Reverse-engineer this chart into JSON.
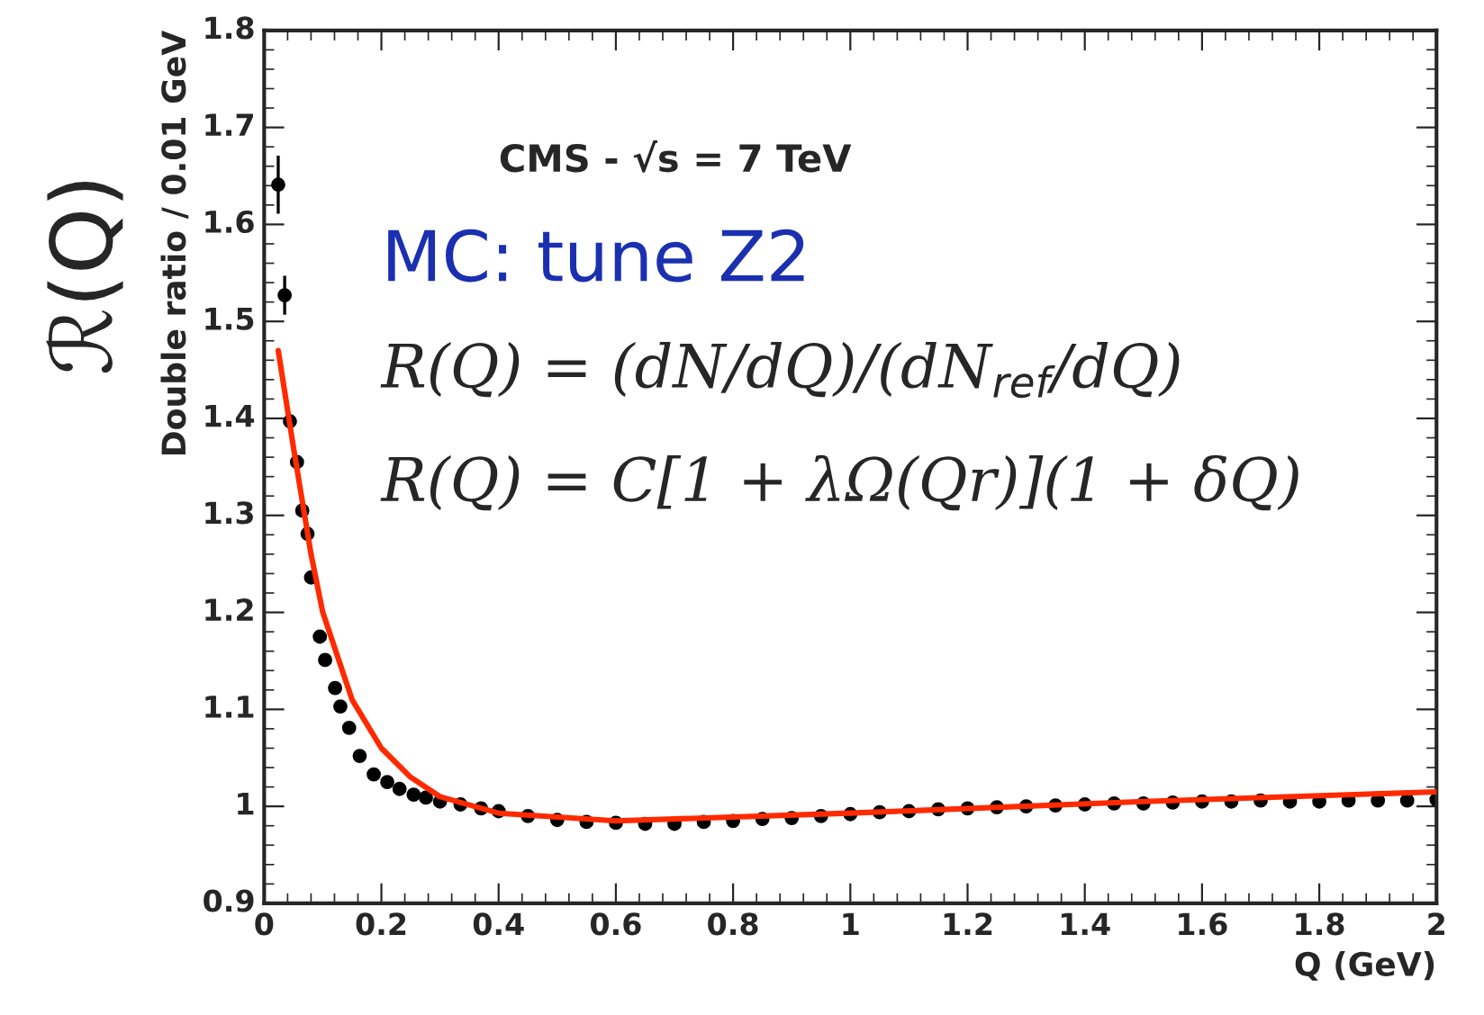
{
  "chart_data": {
    "type": "scatter",
    "xlabel": "Q (GeV)",
    "ylabel": "Double ratio / 0.01 GeV",
    "annotations": [
      "ℛ(Q)",
      "CMS - √s = 7 TeV",
      "MC: tune Z2",
      "R(Q) = (dN/dQ)/(dN$_{ref}$/dQ)",
      "R(Q) = C[1 + λΩ(Qr)](1 + δQ)"
    ],
    "xlim": [
      0,
      2
    ],
    "ylim": [
      0.9,
      1.8
    ],
    "xticks": [
      0,
      0.2,
      0.4,
      0.6,
      0.8,
      1,
      1.2,
      1.4,
      1.6,
      1.8,
      2
    ],
    "yticks": [
      0.9,
      1,
      1.1,
      1.2,
      1.3,
      1.4,
      1.5,
      1.6,
      1.7,
      1.8
    ],
    "grid": false,
    "legend": false,
    "marker": "circle",
    "series": [
      {
        "color": "#000000",
        "x": [
          0.024,
          0.035,
          0.044,
          0.056,
          0.065,
          0.074,
          0.08,
          0.095,
          0.104,
          0.121,
          0.13,
          0.145,
          0.163,
          0.187,
          0.21,
          0.231,
          0.255,
          0.276,
          0.3,
          0.335,
          0.37,
          0.4,
          0.45,
          0.5,
          0.55,
          0.6,
          0.65,
          0.7,
          0.75,
          0.8,
          0.85,
          0.9,
          0.95,
          1.0,
          1.05,
          1.1,
          1.15,
          1.2,
          1.25,
          1.3,
          1.35,
          1.4,
          1.45,
          1.5,
          1.55,
          1.6,
          1.65,
          1.7,
          1.75,
          1.8,
          1.85,
          1.9,
          1.95,
          2.0
        ],
        "values": [
          1.641,
          1.527,
          1.397,
          1.355,
          1.305,
          1.281,
          1.236,
          1.175,
          1.151,
          1.122,
          1.103,
          1.081,
          1.052,
          1.033,
          1.025,
          1.018,
          1.012,
          1.009,
          1.005,
          1.002,
          0.998,
          0.995,
          0.99,
          0.986,
          0.984,
          0.983,
          0.982,
          0.982,
          0.984,
          0.985,
          0.987,
          0.988,
          0.99,
          0.992,
          0.994,
          0.995,
          0.997,
          0.998,
          0.999,
          1.0,
          1.001,
          1.002,
          1.003,
          1.003,
          1.004,
          1.005,
          1.005,
          1.006,
          1.005,
          1.005,
          1.006,
          1.006,
          1.006,
          1.007
        ],
        "errors": [
          0.03,
          0.02,
          null,
          null,
          null,
          null,
          null,
          null,
          null,
          null,
          null,
          null,
          null,
          null,
          null,
          null,
          null,
          null,
          null,
          null,
          null,
          null,
          null,
          null,
          null,
          null,
          null,
          null,
          null,
          null,
          null,
          null,
          null,
          null,
          null,
          null,
          null,
          null,
          null,
          null,
          null,
          null,
          null,
          null,
          null,
          null,
          null,
          null,
          null,
          null,
          null,
          null,
          null,
          null
        ]
      },
      {
        "type": "line",
        "color": "#ff2a00",
        "marker": "none",
        "line_style": "solid",
        "x": [
          0.024,
          0.05,
          0.08,
          0.1,
          0.15,
          0.2,
          0.25,
          0.3,
          0.4,
          0.6,
          1.0,
          1.5,
          2.0
        ],
        "values": [
          1.47,
          1.37,
          1.26,
          1.2,
          1.11,
          1.06,
          1.03,
          1.01,
          0.993,
          0.985,
          0.993,
          1.005,
          1.015
        ]
      }
    ]
  }
}
